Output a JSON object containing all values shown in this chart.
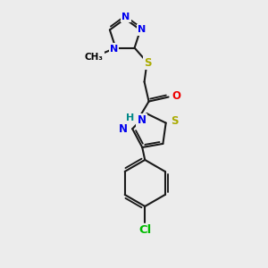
{
  "bg_color": "#ececec",
  "atom_colors": {
    "C": "#000000",
    "N": "#0000EE",
    "O": "#EE0000",
    "S": "#AAAA00",
    "Cl": "#00BB00",
    "H": "#444444",
    "HN": "#008888"
  },
  "figsize": [
    3.0,
    3.0
  ],
  "dpi": 100,
  "bond_lw": 1.5,
  "double_off": 2.8,
  "font_size": 8.5
}
